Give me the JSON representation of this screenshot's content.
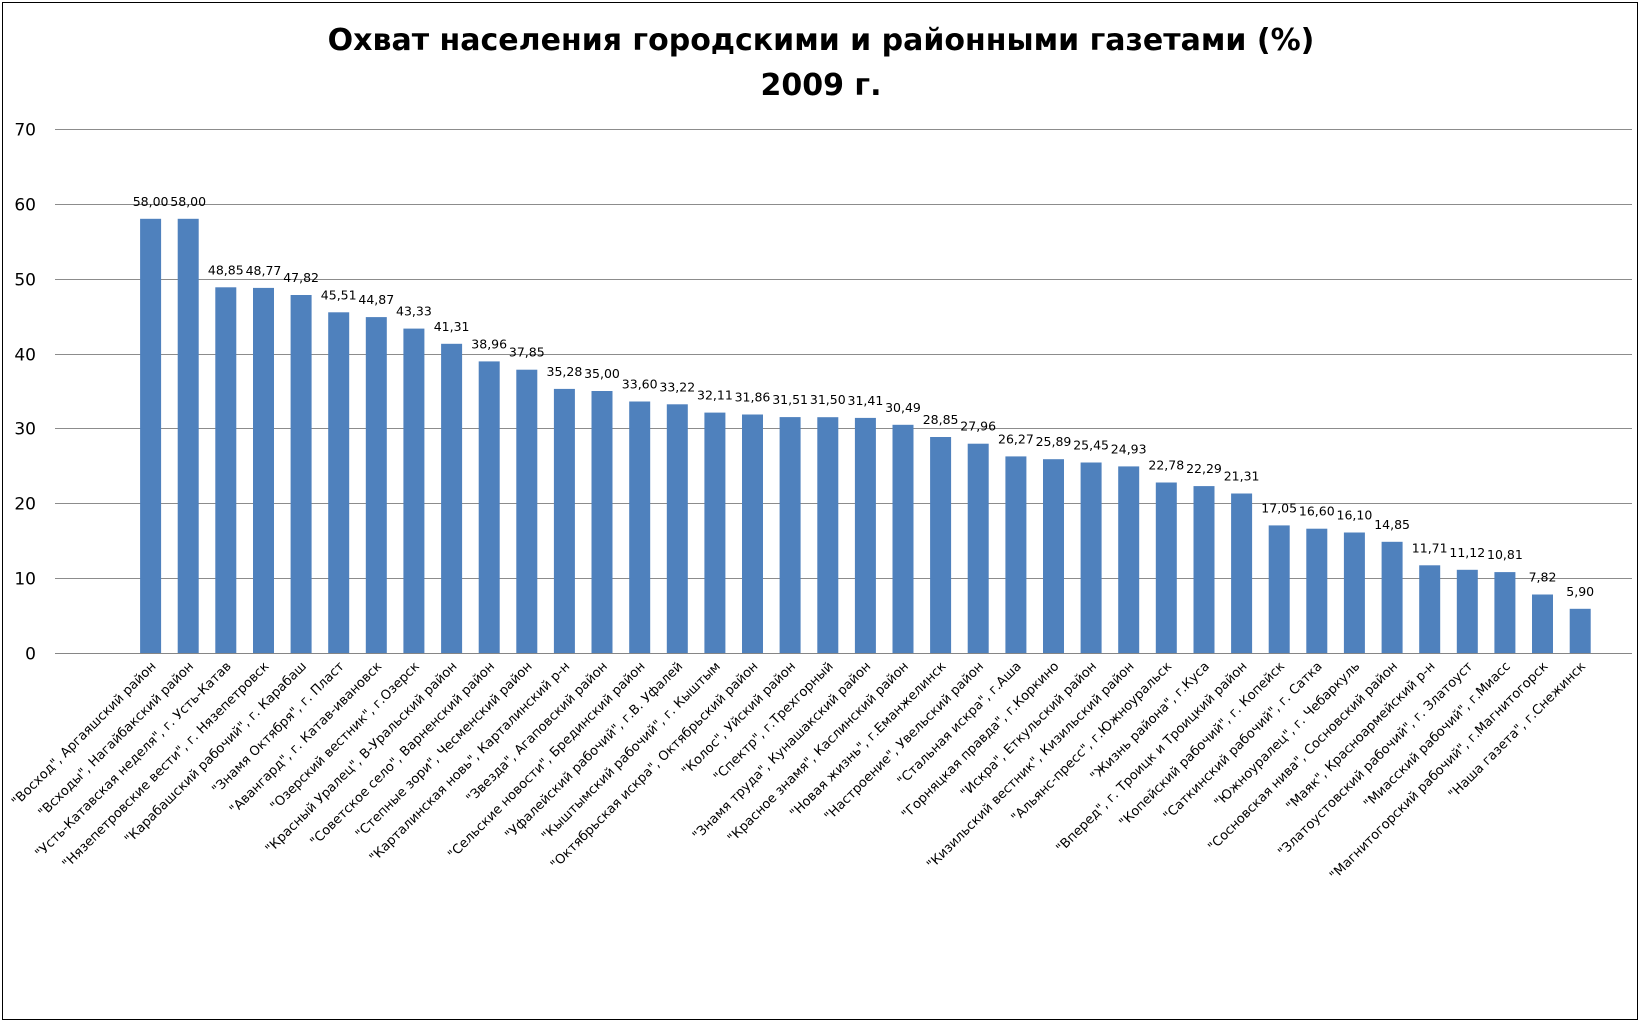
{
  "chart_data": {
    "type": "bar",
    "title": "Охват населения городскими и районными газетами (%)",
    "subtitle": "2009 г.",
    "ylim": [
      0,
      70
    ],
    "yticks": [
      0,
      10,
      20,
      30,
      40,
      50,
      60,
      70
    ],
    "grid": true,
    "legend": "none",
    "bar_color": "#4F81BD",
    "categories": [
      "\"Восход\", Аргаяшский район",
      "\"Всходы\", Нагайбакский район",
      "\"Усть-Катавская неделя\", г. Усть-Катав",
      "\"Нязепетровские вести\", г. Нязепетровск",
      "\"Карабашский рабочий\", г. Карабаш",
      "\"Знамя Октября\", г. Пласт",
      "\"Авангард\", г. Катав-ивановск",
      "\"Озерский вестник\", г.Озерск",
      "\"Красный Уралец\", В-Уральский район",
      "\"Советское село\", Варненский район",
      "\"Степные зори\", Чесменский район",
      "\"Карталинская новь\", Карталинский р-н",
      "\"Звезда\", Агаповский район",
      "\"Сельские новости\", Брединский район",
      "\"Уфалейский рабочий\", г.В. Уфалей",
      "\"Кыштымский рабочий\", г. Кыштым",
      "\"Октябрьская искра\", Октябрьский район",
      "\"Колос\", Уйский район",
      "\"Спектр\", г.Трехгорный",
      "\"Знамя труда\", Кунашакский район",
      "\"Красное знамя\", Каслинский район",
      "\"Новая жизнь\", г.Еманжелинск",
      "\"Настроение\", Увельский район",
      "\"Стальная искра\", г.Аша",
      "\"Горняцкая правда\", г.Коркино",
      "\"Искра\", Еткульский район",
      "\"Кизильский вестник\", Кизильский район",
      "\"Альянс-пресс\", г.Южноуральск",
      "\"Жизнь района\", г.Куса",
      "\"Вперед\", г. Троицк и Троицкий район",
      "\"Копейский рабочий\", г. Копейск",
      "\"Саткинский рабочий\", г. Сатка",
      "\"Южноуралец\", г. Чебаркуль",
      "\"Сосновская нива\", Сосновский район",
      "\"Маяк\", Красноармейский р-н",
      "\"Златоустовский рабочий\", г. Златоуст",
      "\"Миасский рабочий\", г.Миасс",
      "\"Магнитогорский рабочий\", г.Магнитогорск",
      "\"Наша газета\", г.Снежинск"
    ],
    "values": [
      58.0,
      58.0,
      48.85,
      48.77,
      47.82,
      45.51,
      44.87,
      43.33,
      41.31,
      38.96,
      37.85,
      35.28,
      35.0,
      33.6,
      33.22,
      32.11,
      31.86,
      31.51,
      31.5,
      31.41,
      30.49,
      28.85,
      27.96,
      26.27,
      25.89,
      25.45,
      24.93,
      22.78,
      22.29,
      21.31,
      17.05,
      16.6,
      16.1,
      14.85,
      11.71,
      11.12,
      10.81,
      7.82,
      5.9
    ],
    "value_labels": [
      "58,00",
      "58,00",
      "48,85",
      "48,77",
      "47,82",
      "45,51",
      "44,87",
      "43,33",
      "41,31",
      "38,96",
      "37,85",
      "35,28",
      "35,00",
      "33,60",
      "33,22",
      "32,11",
      "31,86",
      "31,51",
      "31,50",
      "31,41",
      "30,49",
      "28,85",
      "27,96",
      "26,27",
      "25,89",
      "25,45",
      "24,93",
      "22,78",
      "22,29",
      "21,31",
      "17,05",
      "16,60",
      "16,10",
      "14,85",
      "11,71",
      "11,12",
      "10,81",
      "7,82",
      "5,90"
    ]
  }
}
